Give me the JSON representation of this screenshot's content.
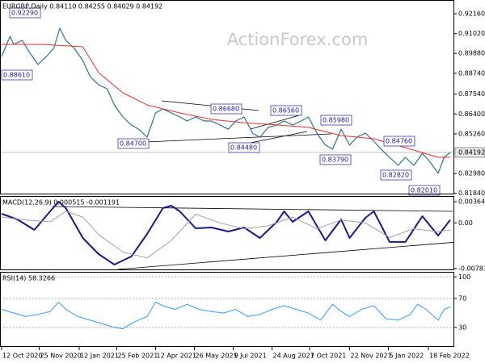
{
  "chart_data": [
    {
      "type": "line",
      "title": "EURGBP,Daily  0.84110 0.84255 0.84029 0.84192",
      "watermark": "ActionForex.com",
      "xlim": [
        0,
        372
      ],
      "ylim": [
        0.8178,
        0.9295
      ],
      "yticks": [
        {
          "value": 0.9216,
          "label": "0.92160"
        },
        {
          "value": 0.9102,
          "label": "0.91020"
        },
        {
          "value": 0.8988,
          "label": "0.89880"
        },
        {
          "value": 0.8874,
          "label": "0.88740"
        },
        {
          "value": 0.8754,
          "label": "0.87540"
        },
        {
          "value": 0.864,
          "label": "0.86400"
        },
        {
          "value": 0.8526,
          "label": "0.85260"
        },
        {
          "value": 0.8298,
          "label": "0.82980"
        },
        {
          "value": 0.8184,
          "label": "0.81840"
        }
      ],
      "last_price": 0.84192,
      "annotations": [
        "0.92290",
        "0.88610",
        "0.84700",
        "0.86680",
        "0.84480",
        "0.86560",
        "0.83790",
        "0.85980",
        "0.84760",
        "0.82820",
        "0.82010"
      ],
      "series": [
        {
          "color": "#2f6f96",
          "width": 1.2,
          "x": [
            0,
            7,
            10,
            17,
            23,
            30,
            37,
            43,
            48,
            53,
            60,
            67,
            73,
            80,
            87,
            93,
            100,
            107,
            113,
            120,
            127,
            133,
            140,
            147,
            153,
            160,
            167,
            173,
            180,
            187,
            193,
            200,
            207,
            213,
            220,
            227,
            233,
            240,
            247,
            253,
            260,
            267,
            273,
            280,
            287,
            293,
            300,
            307,
            313,
            320,
            327,
            333,
            340,
            347,
            353,
            360,
            365,
            370
          ],
          "values": [
            0.8971,
            0.9086,
            0.904,
            0.9063,
            0.8994,
            0.8924,
            0.8971,
            0.9017,
            0.9133,
            0.9063,
            0.9017,
            0.8947,
            0.8855,
            0.8808,
            0.8785,
            0.8692,
            0.8623,
            0.8577,
            0.8553,
            0.8507,
            0.8646,
            0.8669,
            0.8646,
            0.8623,
            0.86,
            0.8623,
            0.86,
            0.86,
            0.8577,
            0.8553,
            0.86,
            0.8623,
            0.853,
            0.8507,
            0.8563,
            0.8577,
            0.86,
            0.8577,
            0.86,
            0.8623,
            0.853,
            0.8461,
            0.8438,
            0.8553,
            0.8461,
            0.8507,
            0.853,
            0.8484,
            0.8438,
            0.8391,
            0.8345,
            0.8391,
            0.8345,
            0.8414,
            0.8368,
            0.8299,
            0.8391,
            0.84192
          ]
        },
        {
          "color": "#e8302c",
          "width": 1,
          "x": [
            0,
            33,
            67,
            80,
            100,
            120,
            147,
            173,
            200,
            227,
            253,
            280,
            307,
            333,
            360,
            370
          ],
          "values": [
            0.904,
            0.904,
            0.9026,
            0.8878,
            0.8762,
            0.8692,
            0.8646,
            0.8609,
            0.859,
            0.8577,
            0.8563,
            0.8516,
            0.8498,
            0.8447,
            0.8391,
            0.8391
          ]
        }
      ]
    },
    {
      "type": "line",
      "title": "MACD(12,26,9) 0.000515 -0.001191",
      "xlim": [
        0,
        372
      ],
      "ylim": [
        -0.00812,
        0.00461
      ],
      "yticks": [
        0.003641,
        {
          "value": 0,
          "label": "0.00"
        },
        -0.007839
      ],
      "series": [
        {
          "color": "#1a1a8c",
          "width": 2,
          "x": [
            0,
            13,
            27,
            40,
            47,
            53,
            67,
            80,
            93,
            107,
            120,
            133,
            140,
            147,
            160,
            173,
            187,
            200,
            213,
            227,
            233,
            240,
            253,
            267,
            280,
            287,
            300,
            307,
            320,
            333,
            347,
            360,
            370
          ],
          "values": [
            0.00157,
            0.0006,
            -0.0012,
            0.00198,
            0.00364,
            0.00254,
            -0.00258,
            -0.00535,
            -0.00715,
            -0.00576,
            -0.00189,
            0.00254,
            0.00295,
            0.00198,
            -0.00092,
            -0.00078,
            -0.00148,
            -0.00078,
            -0.00258,
            0.00018,
            0.00198,
            0.00018,
            0.00198,
            -0.003,
            0.0006,
            -0.00258,
            0.00088,
            0.00198,
            -0.00327,
            -0.00327,
            0.00115,
            -0.00217,
            0.000515
          ]
        },
        {
          "color": "#a0a0a0",
          "width": 1,
          "x": [
            0,
            20,
            40,
            53,
            67,
            80,
            100,
            120,
            140,
            160,
            180,
            200,
            220,
            240,
            260,
            280,
            300,
            320,
            340,
            360,
            370
          ],
          "values": [
            0.001,
            0.0005,
            0.0002,
            0.002,
            0.001,
            -0.002,
            -0.005,
            -0.006,
            -0.003,
            0.0015,
            0,
            -0.001,
            -0.0005,
            0.001,
            -0.001,
            0.0005,
            0,
            -0.0025,
            -0.001,
            -0.0015,
            -0.001191
          ]
        }
      ]
    },
    {
      "type": "line",
      "title": "RSI(14) 58.3266",
      "xlim": [
        0,
        372
      ],
      "ylim": [
        3,
        107
      ],
      "yticks": [
        100,
        70,
        30
      ],
      "grid": true,
      "xticks": [
        {
          "value": 0,
          "label": "12 Oct 2020"
        },
        {
          "value": 31,
          "label": "25 Nov 2020"
        },
        {
          "value": 64,
          "label": "12 Jan 2021"
        },
        {
          "value": 95,
          "label": "25 Feb 2021"
        },
        {
          "value": 127,
          "label": "12 Apr 2021"
        },
        {
          "value": 159,
          "label": "26 May 2021"
        },
        {
          "value": 191,
          "label": "9 Jul 2021"
        },
        {
          "value": 223,
          "label": "24 Aug 2021"
        },
        {
          "value": 254,
          "label": "7 Oct 2021"
        },
        {
          "value": 287,
          "label": "22 Nov 2021"
        },
        {
          "value": 319,
          "label": "5 Jan 2022"
        },
        {
          "value": 352,
          "label": "18 Feb 2022"
        }
      ],
      "series": [
        {
          "color": "#3399ff",
          "width": 1,
          "x": [
            0,
            10,
            20,
            30,
            40,
            47,
            53,
            63,
            73,
            83,
            93,
            100,
            110,
            120,
            127,
            133,
            143,
            153,
            163,
            173,
            183,
            193,
            203,
            213,
            223,
            233,
            243,
            253,
            263,
            273,
            280,
            287,
            297,
            307,
            317,
            327,
            337,
            343,
            350,
            360,
            365,
            370
          ],
          "values": [
            55,
            50,
            45,
            48,
            52,
            65,
            55,
            45,
            40,
            35,
            30,
            28,
            38,
            45,
            65,
            60,
            55,
            62,
            55,
            52,
            50,
            55,
            45,
            48,
            55,
            60,
            55,
            50,
            40,
            62,
            52,
            45,
            55,
            60,
            42,
            40,
            48,
            62,
            55,
            40,
            55,
            58.3266
          ]
        }
      ]
    }
  ]
}
